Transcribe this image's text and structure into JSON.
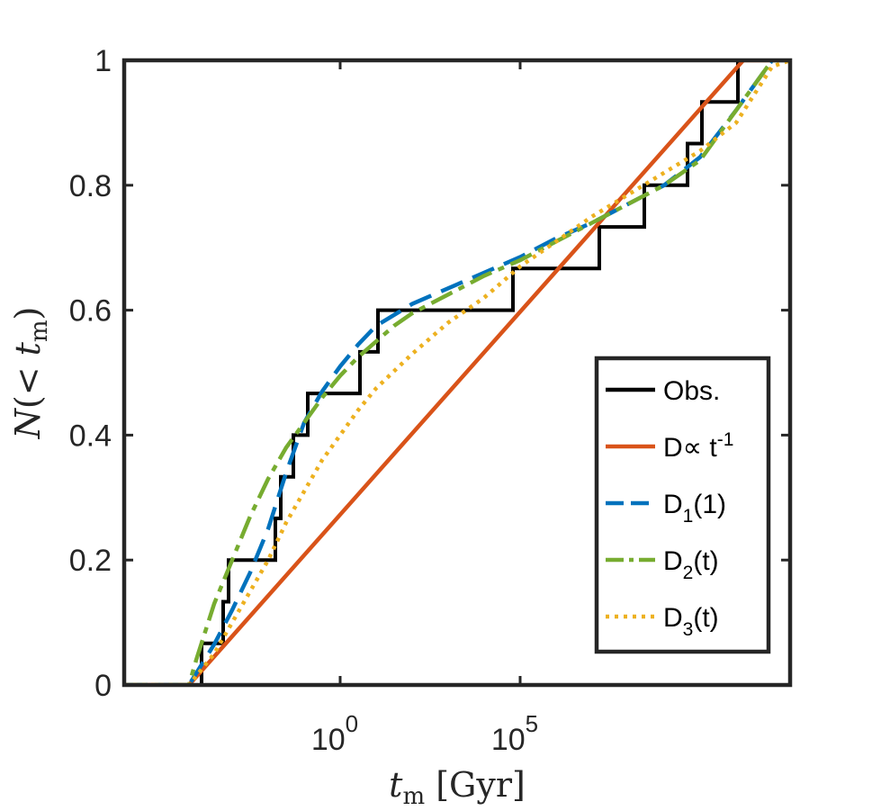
{
  "chart_data": {
    "type": "line",
    "title": "",
    "xlabel": "t_m [Gyr]",
    "ylabel": "N(< t_m)",
    "xscale": "log",
    "x_log10_range": [
      -6,
      12.5
    ],
    "ylim": [
      0,
      1
    ],
    "grid": false,
    "legend_position": "bottom-right",
    "x_ticks": [
      {
        "log10": 0,
        "base": "10",
        "exp": "0"
      },
      {
        "log10": 5,
        "base": "10",
        "exp": "5"
      }
    ],
    "y_ticks": [
      {
        "value": 0,
        "label": "0"
      },
      {
        "value": 0.2,
        "label": "0.2"
      },
      {
        "value": 0.4,
        "label": "0.4"
      },
      {
        "value": 0.6,
        "label": "0.6"
      },
      {
        "value": 0.8,
        "label": "0.8"
      },
      {
        "value": 1,
        "label": "1"
      }
    ],
    "series": [
      {
        "name": "Obs.",
        "color": "#000000",
        "style": "solid",
        "step": true,
        "points": [
          [
            -6,
            0
          ],
          [
            -4.2,
            0
          ],
          [
            -3.85,
            0
          ],
          [
            -3.85,
            0.0667
          ],
          [
            -3.25,
            0.0667
          ],
          [
            -3.25,
            0.1333
          ],
          [
            -3.1,
            0.1333
          ],
          [
            -3.1,
            0.2
          ],
          [
            -1.8,
            0.2
          ],
          [
            -1.8,
            0.2667
          ],
          [
            -1.65,
            0.2667
          ],
          [
            -1.65,
            0.3333
          ],
          [
            -1.3,
            0.3333
          ],
          [
            -1.3,
            0.4
          ],
          [
            -0.9,
            0.4
          ],
          [
            -0.9,
            0.4667
          ],
          [
            0.55,
            0.4667
          ],
          [
            0.55,
            0.5333
          ],
          [
            1.05,
            0.5333
          ],
          [
            1.05,
            0.6
          ],
          [
            4.8,
            0.6
          ],
          [
            4.8,
            0.6667
          ],
          [
            7.2,
            0.6667
          ],
          [
            7.2,
            0.7333
          ],
          [
            8.45,
            0.7333
          ],
          [
            8.45,
            0.8
          ],
          [
            9.65,
            0.8
          ],
          [
            9.65,
            0.8667
          ],
          [
            10.05,
            0.8667
          ],
          [
            10.05,
            0.9333
          ],
          [
            11.05,
            0.9333
          ],
          [
            11.05,
            1
          ],
          [
            12.5,
            1
          ]
        ]
      },
      {
        "name": "D∝ t^-1",
        "color": "#D95319",
        "style": "solid",
        "points": [
          [
            -6,
            0
          ],
          [
            -4.2,
            0
          ],
          [
            11.2,
            1
          ],
          [
            12.5,
            1
          ]
        ]
      },
      {
        "name": "D_1(1)",
        "color": "#0072BD",
        "style": "dashed",
        "points": [
          [
            -6,
            0
          ],
          [
            -4.2,
            0
          ],
          [
            -3.5,
            0.065
          ],
          [
            -3,
            0.12
          ],
          [
            -2.5,
            0.18
          ],
          [
            -2,
            0.25
          ],
          [
            -1.5,
            0.34
          ],
          [
            -1,
            0.42
          ],
          [
            -0.5,
            0.47
          ],
          [
            0,
            0.51
          ],
          [
            0.5,
            0.545
          ],
          [
            1,
            0.575
          ],
          [
            2,
            0.61
          ],
          [
            3,
            0.635
          ],
          [
            4,
            0.66
          ],
          [
            5,
            0.685
          ],
          [
            6,
            0.715
          ],
          [
            7,
            0.74
          ],
          [
            8,
            0.77
          ],
          [
            9,
            0.8
          ],
          [
            10,
            0.845
          ],
          [
            11,
            0.92
          ],
          [
            12,
            1
          ],
          [
            12.5,
            1
          ]
        ]
      },
      {
        "name": "D_2(t)",
        "color": "#77AC30",
        "style": "dashdot",
        "points": [
          [
            -6,
            0
          ],
          [
            -4.2,
            0
          ],
          [
            -4,
            0.04
          ],
          [
            -3.5,
            0.13
          ],
          [
            -3,
            0.2
          ],
          [
            -2.5,
            0.27
          ],
          [
            -2,
            0.33
          ],
          [
            -1.5,
            0.38
          ],
          [
            -1,
            0.42
          ],
          [
            -0.5,
            0.46
          ],
          [
            0,
            0.495
          ],
          [
            0.5,
            0.525
          ],
          [
            1,
            0.55
          ],
          [
            1.5,
            0.575
          ],
          [
            2,
            0.595
          ],
          [
            3,
            0.625
          ],
          [
            4,
            0.655
          ],
          [
            5,
            0.68
          ],
          [
            6,
            0.71
          ],
          [
            7,
            0.74
          ],
          [
            8,
            0.77
          ],
          [
            9,
            0.8
          ],
          [
            10,
            0.84
          ],
          [
            11,
            0.92
          ],
          [
            12,
            1
          ],
          [
            12.5,
            1
          ]
        ]
      },
      {
        "name": "D_3(t)",
        "color": "#EDB120",
        "style": "dotted",
        "points": [
          [
            -6,
            0
          ],
          [
            -4.2,
            0
          ],
          [
            -3.5,
            0.05
          ],
          [
            -3,
            0.1
          ],
          [
            -2.5,
            0.15
          ],
          [
            -2,
            0.2
          ],
          [
            -1.5,
            0.26
          ],
          [
            -1,
            0.31
          ],
          [
            -0.5,
            0.36
          ],
          [
            0,
            0.4
          ],
          [
            0.5,
            0.44
          ],
          [
            1,
            0.475
          ],
          [
            2,
            0.53
          ],
          [
            3,
            0.58
          ],
          [
            4,
            0.62
          ],
          [
            5,
            0.67
          ],
          [
            6,
            0.71
          ],
          [
            7,
            0.75
          ],
          [
            8,
            0.785
          ],
          [
            9,
            0.82
          ],
          [
            10,
            0.855
          ],
          [
            11,
            0.9
          ],
          [
            12,
            0.99
          ],
          [
            12.5,
            1
          ]
        ]
      }
    ],
    "legend": [
      {
        "series": 0,
        "text": "Obs.",
        "sub": "",
        "after": "",
        "sup": ""
      },
      {
        "series": 1,
        "text": "D∝ t",
        "sub": "",
        "after": "",
        "sup": "-1"
      },
      {
        "series": 2,
        "text": "D",
        "sub": "1",
        "after": "(1)",
        "sup": ""
      },
      {
        "series": 3,
        "text": "D",
        "sub": "2",
        "after": "(t)",
        "sup": ""
      },
      {
        "series": 4,
        "text": "D",
        "sub": "3",
        "after": "(t)",
        "sup": ""
      }
    ]
  }
}
